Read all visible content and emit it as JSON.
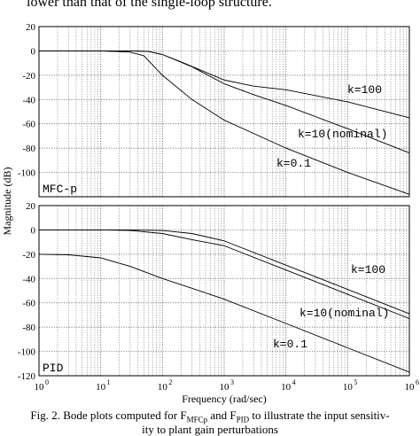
{
  "top_text": "lower than that of the single-loop structure.",
  "caption": {
    "line1_prefix": "Fig. 2. Bode plots computed for F",
    "line1_sub1": "MFCp",
    "line1_mid": " and F",
    "line1_sub2": "PID",
    "line1_suffix": " to illustrate the input sensitiv-",
    "line2": "ity to plant gain perturbations"
  },
  "chart_data": [
    {
      "type": "line",
      "panel_label": "MFC-p",
      "ylabel": "Magnitude (dB)",
      "xlabel": "",
      "xscale": "log",
      "xlim": [
        1,
        1000000
      ],
      "ylim": [
        -120,
        20
      ],
      "yticks": [
        20,
        0,
        -20,
        -40,
        -60,
        -80,
        -100
      ],
      "grid": true,
      "series": [
        {
          "name": "k=100",
          "x": [
            1,
            10,
            30,
            60,
            100,
            200,
            1000,
            3000,
            10000,
            100000,
            1000000
          ],
          "y": [
            0,
            0,
            0,
            -0.5,
            -3,
            -9,
            -24,
            -29,
            -32,
            -42,
            -55
          ]
        },
        {
          "name": "k=10 (nominal)",
          "x": [
            1,
            10,
            30,
            60,
            100,
            300,
            1000,
            3000,
            10000,
            100000,
            1000000
          ],
          "y": [
            0,
            0,
            0,
            -0.5,
            -3,
            -13,
            -27,
            -36,
            -45,
            -64,
            -84
          ]
        },
        {
          "name": "k=0.1",
          "x": [
            1,
            10,
            30,
            50,
            100,
            300,
            1000,
            10000,
            100000,
            1000000
          ],
          "y": [
            0,
            0,
            -1,
            -4,
            -20,
            -40,
            -57,
            -80,
            -100,
            -118
          ]
        }
      ],
      "annotations": [
        "k=100",
        "k=10(nominal)",
        "k=0.1"
      ]
    },
    {
      "type": "line",
      "panel_label": "PID",
      "ylabel": "Magnitude (dB)",
      "xlabel": "Frequency (rad/sec)",
      "xscale": "log",
      "xlim": [
        1,
        1000000
      ],
      "ylim": [
        -120,
        20
      ],
      "yticks": [
        20,
        0,
        -20,
        -40,
        -60,
        -80,
        -100,
        -120
      ],
      "xticks": [
        "10^0",
        "10^1",
        "10^2",
        "10^3",
        "10^4",
        "10^5",
        "10^6"
      ],
      "grid": true,
      "series": [
        {
          "name": "k=100",
          "x": [
            1,
            10,
            30,
            100,
            300,
            1000,
            10000,
            100000,
            1000000
          ],
          "y": [
            0,
            0,
            0,
            -0.5,
            -3,
            -9,
            -29,
            -49,
            -69
          ]
        },
        {
          "name": "k=10 (nominal)",
          "x": [
            1,
            10,
            30,
            100,
            300,
            1000,
            10000,
            100000,
            1000000
          ],
          "y": [
            0,
            0,
            -0.5,
            -3,
            -8,
            -13,
            -33,
            -53,
            -73
          ]
        },
        {
          "name": "k=0.1",
          "x": [
            1,
            3,
            10,
            30,
            100,
            300,
            1000,
            10000,
            100000,
            1000000
          ],
          "y": [
            -20,
            -20.5,
            -23,
            -30,
            -40,
            -48,
            -57,
            -77,
            -97,
            -117
          ]
        }
      ],
      "annotations": [
        "k=100",
        "k=10(nominal)",
        "k=0.1"
      ]
    }
  ]
}
